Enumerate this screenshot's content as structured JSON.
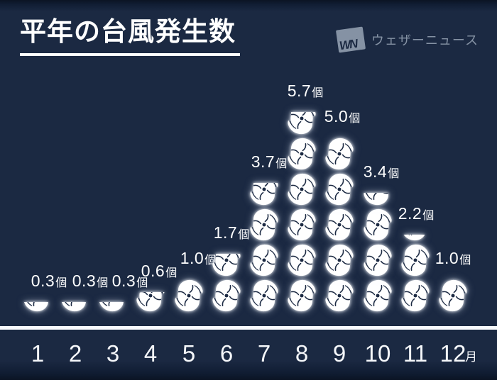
{
  "header": {
    "title": "平年の台風発生数",
    "logo": {
      "mark": "WN",
      "name": "ウェザーニュース"
    }
  },
  "chart_data": {
    "type": "pictogram-bar",
    "title": "平年の台風発生数",
    "icon": "typhoon-icon",
    "unit": "個",
    "categories": [
      "1",
      "2",
      "3",
      "4",
      "5",
      "6",
      "7",
      "8",
      "9",
      "10",
      "11",
      "12"
    ],
    "category_suffix": "月",
    "values": [
      0.3,
      0.3,
      0.3,
      0.6,
      1.0,
      1.7,
      3.7,
      5.7,
      5.0,
      3.4,
      2.2,
      1.0
    ],
    "value_labels": [
      "0.3個",
      "0.3個",
      "0.3個",
      "0.6個",
      "1.0個",
      "1.7個",
      "3.7個",
      "5.7個",
      "5.0個",
      "3.4個",
      "2.2個",
      "1.0個"
    ],
    "legend_position": "none",
    "grid": false
  },
  "colors": {
    "background": "#1b2942",
    "edge_fade": "#0b1424",
    "text": "#ffffff",
    "logo_gray": "#8592a4",
    "axis_line": "#f8fafc"
  }
}
